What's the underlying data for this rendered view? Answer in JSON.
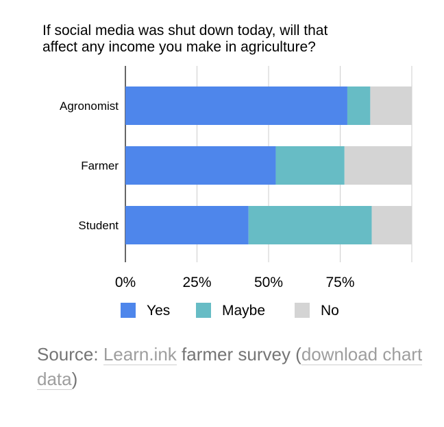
{
  "chart_data": {
    "type": "bar",
    "orientation": "horizontal",
    "stacked": true,
    "title_lines": [
      "If social media was shut down today, will that",
      "affect any income you make in agriculture?"
    ],
    "categories": [
      "Agronomist",
      "Farmer",
      "Student"
    ],
    "series": [
      {
        "name": "Yes",
        "color": "#4e86eb",
        "values": [
          77.5,
          52.5,
          43
        ]
      },
      {
        "name": "Maybe",
        "color": "#67bcc5",
        "values": [
          8,
          24,
          43
        ]
      },
      {
        "name": "No",
        "color": "#d4d4d4",
        "values": [
          14.5,
          23.5,
          14
        ]
      }
    ],
    "xlim": [
      0,
      100
    ],
    "x_ticks": [
      0,
      25,
      50,
      75,
      100
    ],
    "x_tick_labels": [
      "0%",
      "25%",
      "50%",
      "75%"
    ],
    "grid": true,
    "legend_position": "bottom"
  },
  "source": {
    "prefix": "Source: ",
    "link1": "Learn.ink",
    "middle": " farmer survey (",
    "link2": "download chart data",
    "suffix": ")"
  }
}
